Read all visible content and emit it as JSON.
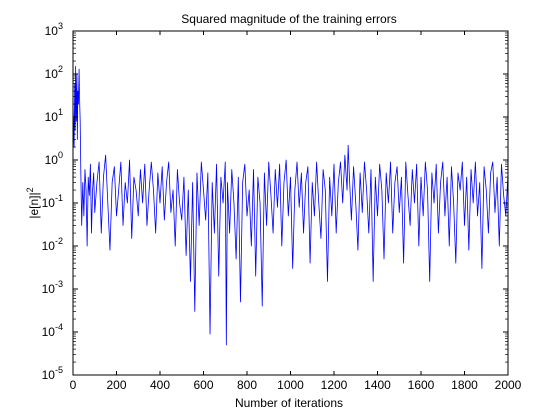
{
  "chart_data": {
    "type": "line",
    "title": "Squared magnitude of the training errors",
    "xlabel": "Number of iterations",
    "ylabel": "|e[n]|",
    "ylabel_superscript": "2",
    "xlim": [
      0,
      2000
    ],
    "ylim": [
      1e-05,
      1000
    ],
    "yscale": "log",
    "grid": false,
    "line_color": "#0000ff",
    "x_ticks": [
      0,
      200,
      400,
      600,
      800,
      1000,
      1200,
      1400,
      1600,
      1800,
      2000
    ],
    "y_ticks": [
      {
        "base": "10",
        "exp": "-5",
        "value": 1e-05
      },
      {
        "base": "10",
        "exp": "-4",
        "value": 0.0001
      },
      {
        "base": "10",
        "exp": "-3",
        "value": 0.001
      },
      {
        "base": "10",
        "exp": "-2",
        "value": 0.01
      },
      {
        "base": "10",
        "exp": "-1",
        "value": 0.1
      },
      {
        "base": "10",
        "exp": "0",
        "value": 1
      },
      {
        "base": "10",
        "exp": "1",
        "value": 10
      },
      {
        "base": "10",
        "exp": "2",
        "value": 100
      },
      {
        "base": "10",
        "exp": "3",
        "value": 1000
      }
    ],
    "series": [
      {
        "points": [
          [
            0,
            20
          ],
          [
            5,
            2.0
          ],
          [
            8,
            60
          ],
          [
            10,
            5
          ],
          [
            12,
            150
          ],
          [
            15,
            8
          ],
          [
            18,
            100
          ],
          [
            20,
            3
          ],
          [
            22,
            40
          ],
          [
            25,
            20
          ],
          [
            28,
            130
          ],
          [
            30,
            30
          ],
          [
            33,
            8
          ],
          [
            36,
            0.5
          ],
          [
            40,
            0.03
          ],
          [
            45,
            0.3
          ],
          [
            50,
            0.05
          ],
          [
            55,
            0.6
          ],
          [
            60,
            0.2
          ],
          [
            65,
            0.01
          ],
          [
            70,
            0.4
          ],
          [
            75,
            0.15
          ],
          [
            80,
            0.8
          ],
          [
            85,
            0.02
          ],
          [
            90,
            0.2
          ],
          [
            95,
            0.5
          ],
          [
            100,
            0.06
          ],
          [
            110,
            0.3
          ],
          [
            120,
            0.9
          ],
          [
            130,
            0.02
          ],
          [
            140,
            0.4
          ],
          [
            150,
            1.3
          ],
          [
            160,
            0.1
          ],
          [
            170,
            0.008
          ],
          [
            180,
            0.3
          ],
          [
            190,
            0.7
          ],
          [
            200,
            0.05
          ],
          [
            210,
            0.2
          ],
          [
            220,
            0.9
          ],
          [
            230,
            0.03
          ],
          [
            240,
            0.3
          ],
          [
            250,
            0.1
          ],
          [
            260,
            1.0
          ],
          [
            270,
            0.015
          ],
          [
            280,
            0.4
          ],
          [
            290,
            0.2
          ],
          [
            300,
            0.05
          ],
          [
            310,
            0.6
          ],
          [
            320,
            0.1
          ],
          [
            330,
            0.8
          ],
          [
            340,
            0.03
          ],
          [
            350,
            0.2
          ],
          [
            360,
            0.9
          ],
          [
            370,
            0.2
          ],
          [
            380,
            0.02
          ],
          [
            390,
            0.5
          ],
          [
            400,
            0.1
          ],
          [
            410,
            0.7
          ],
          [
            420,
            0.04
          ],
          [
            430,
            0.3
          ],
          [
            440,
            0.9
          ],
          [
            450,
            0.06
          ],
          [
            460,
            0.2
          ],
          [
            470,
            0.01
          ],
          [
            480,
            0.6
          ],
          [
            490,
            0.1
          ],
          [
            500,
            0.04
          ],
          [
            510,
            0.4
          ],
          [
            520,
            0.006
          ],
          [
            530,
            0.2
          ],
          [
            540,
            0.0015
          ],
          [
            550,
            0.3
          ],
          [
            560,
            0.0003
          ],
          [
            570,
            0.5
          ],
          [
            580,
            0.03
          ],
          [
            590,
            0.9
          ],
          [
            600,
            0.2
          ],
          [
            610,
            0.04
          ],
          [
            620,
            0.5
          ],
          [
            630,
            9e-05
          ],
          [
            640,
            0.3
          ],
          [
            650,
            0.02
          ],
          [
            660,
            0.8
          ],
          [
            670,
            0.002
          ],
          [
            680,
            0.4
          ],
          [
            690,
            0.1
          ],
          [
            700,
            0.9
          ],
          [
            705,
            5e-05
          ],
          [
            710,
            0.3
          ],
          [
            720,
            0.02
          ],
          [
            730,
            0.6
          ],
          [
            740,
            0.1
          ],
          [
            750,
            0.005
          ],
          [
            760,
            0.4
          ],
          [
            770,
            0.0005
          ],
          [
            780,
            0.3
          ],
          [
            790,
            0.8
          ],
          [
            800,
            0.05
          ],
          [
            810,
            0.2
          ],
          [
            820,
            0.01
          ],
          [
            830,
            0.6
          ],
          [
            840,
            0.002
          ],
          [
            850,
            0.4
          ],
          [
            860,
            0.1
          ],
          [
            870,
            0.0004
          ],
          [
            880,
            0.5
          ],
          [
            890,
            0.03
          ],
          [
            900,
            0.9
          ],
          [
            910,
            0.15
          ],
          [
            920,
            0.02
          ],
          [
            930,
            0.6
          ],
          [
            940,
            0.08
          ],
          [
            950,
            0.8
          ],
          [
            960,
            0.01
          ],
          [
            970,
            0.3
          ],
          [
            980,
            1.0
          ],
          [
            990,
            0.05
          ],
          [
            1000,
            0.4
          ],
          [
            1010,
            0.003
          ],
          [
            1020,
            0.2
          ],
          [
            1030,
            0.9
          ],
          [
            1040,
            0.08
          ],
          [
            1050,
            0.5
          ],
          [
            1060,
            0.02
          ],
          [
            1070,
            0.3
          ],
          [
            1080,
            0.7
          ],
          [
            1090,
            0.004
          ],
          [
            1100,
            0.3
          ],
          [
            1110,
            0.05
          ],
          [
            1120,
            0.9
          ],
          [
            1130,
            0.1
          ],
          [
            1140,
            0.015
          ],
          [
            1150,
            0.6
          ],
          [
            1160,
            0.2
          ],
          [
            1170,
            0.0015
          ],
          [
            1180,
            0.4
          ],
          [
            1190,
            0.05
          ],
          [
            1200,
            0.8
          ],
          [
            1210,
            0.02
          ],
          [
            1220,
            0.3
          ],
          [
            1230,
            0.9
          ],
          [
            1240,
            0.1
          ],
          [
            1250,
            1.3
          ],
          [
            1260,
            0.2
          ],
          [
            1265,
            2.2
          ],
          [
            1270,
            0.5
          ],
          [
            1280,
            0.04
          ],
          [
            1290,
            0.7
          ],
          [
            1300,
            0.1
          ],
          [
            1310,
            0.008
          ],
          [
            1320,
            0.5
          ],
          [
            1330,
            0.06
          ],
          [
            1340,
            0.9
          ],
          [
            1350,
            0.2
          ],
          [
            1360,
            0.02
          ],
          [
            1370,
            0.6
          ],
          [
            1380,
            0.0015
          ],
          [
            1390,
            0.4
          ],
          [
            1400,
            0.05
          ],
          [
            1410,
            0.8
          ],
          [
            1420,
            0.2
          ],
          [
            1430,
            0.005
          ],
          [
            1440,
            0.5
          ],
          [
            1450,
            0.1
          ],
          [
            1460,
            0.9
          ],
          [
            1470,
            0.02
          ],
          [
            1480,
            0.3
          ],
          [
            1490,
            0.7
          ],
          [
            1500,
            0.06
          ],
          [
            1510,
            0.4
          ],
          [
            1520,
            0.004
          ],
          [
            1530,
            0.9
          ],
          [
            1540,
            0.15
          ],
          [
            1550,
            0.03
          ],
          [
            1560,
            0.6
          ],
          [
            1570,
            0.1
          ],
          [
            1580,
            0.8
          ],
          [
            1590,
            0.01
          ],
          [
            1600,
            0.4
          ],
          [
            1610,
            0.05
          ],
          [
            1620,
            0.9
          ],
          [
            1630,
            0.2
          ],
          [
            1640,
            0.0015
          ],
          [
            1650,
            0.5
          ],
          [
            1660,
            0.1
          ],
          [
            1670,
            0.8
          ],
          [
            1680,
            0.02
          ],
          [
            1690,
            0.3
          ],
          [
            1700,
            0.9
          ],
          [
            1710,
            0.05
          ],
          [
            1720,
            0.4
          ],
          [
            1730,
            0.01
          ],
          [
            1740,
            0.7
          ],
          [
            1750,
            0.1
          ],
          [
            1760,
            0.004
          ],
          [
            1770,
            0.5
          ],
          [
            1780,
            0.2
          ],
          [
            1790,
            0.9
          ],
          [
            1800,
            0.03
          ],
          [
            1810,
            0.4
          ],
          [
            1820,
            0.008
          ],
          [
            1830,
            0.6
          ],
          [
            1840,
            0.1
          ],
          [
            1850,
            0.9
          ],
          [
            1860,
            0.05
          ],
          [
            1870,
            0.3
          ],
          [
            1880,
            0.003
          ],
          [
            1890,
            0.7
          ],
          [
            1900,
            0.2
          ],
          [
            1910,
            0.02
          ],
          [
            1920,
            0.5
          ],
          [
            1930,
            0.9
          ],
          [
            1940,
            0.06
          ],
          [
            1950,
            0.4
          ],
          [
            1960,
            0.01
          ],
          [
            1970,
            0.8
          ],
          [
            1980,
            0.15
          ],
          [
            1990,
            0.05
          ],
          [
            2000,
            0.5
          ]
        ]
      }
    ]
  }
}
